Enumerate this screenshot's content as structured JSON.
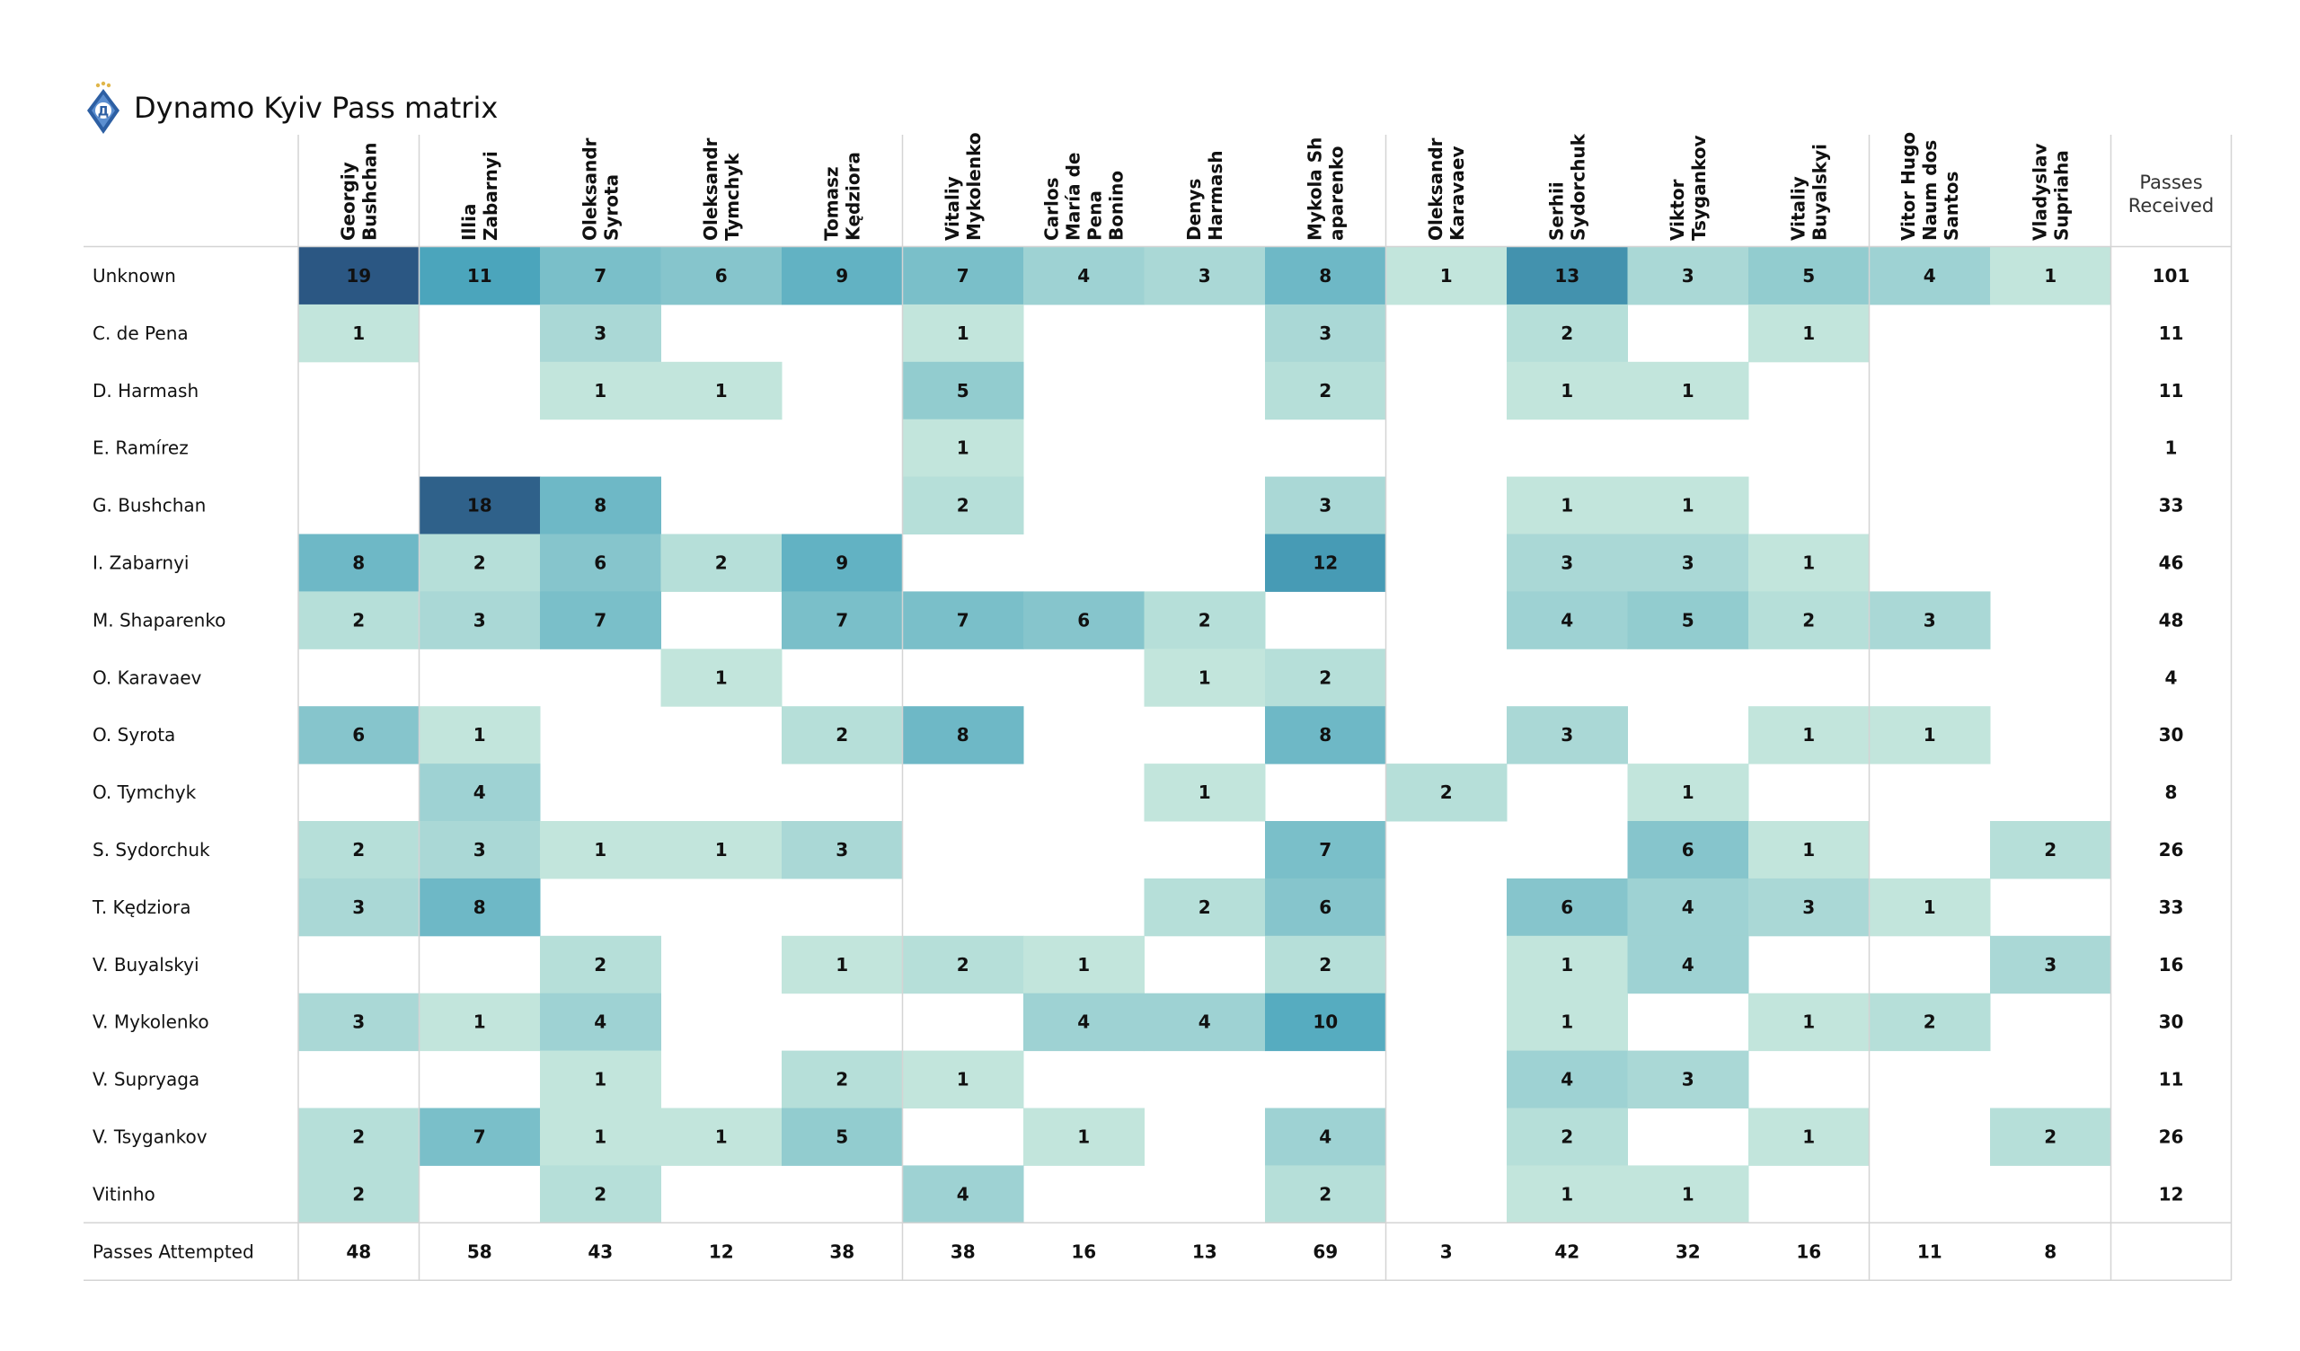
{
  "header": {
    "title": "Dynamo Kyiv Pass matrix"
  },
  "icons": {
    "logo": "dynamo-kyiv-crest-icon"
  },
  "colors": {
    "low": "#c2e5dc",
    "mid": "#4ba6bd",
    "high": "#2b5783",
    "grid": "#d4d4d4",
    "text": "#111111"
  },
  "chart_data": {
    "type": "heatmap",
    "title": "Dynamo Kyiv Pass matrix",
    "x_header_note": "columns = receiver, rows = passer",
    "columns": [
      "Georgiy\nBushchan",
      "Illia\nZabarnyi",
      "Oleksandr\nSyrota",
      "Oleksandr\nTymchyk",
      "Tomasz\nKędziora",
      "Vitaliy\nMykolenko",
      "Carlos\nMaría de\nPena\nBonino",
      "Denys\nHarmash",
      "Mykola Sh\naparenko",
      "Oleksandr\nKaravaev",
      "Serhii\nSydorchuk",
      "Viktor\nTsygankov",
      "Vitaliy\nBuyalskyi",
      "Vitor Hugo\nNaum dos\nSantos",
      "Vladyslav\nSupriaha"
    ],
    "total_column_label": "Passes\nReceived",
    "rows": [
      "Unknown",
      "C. de Pena",
      "D. Harmash",
      "E. Ramírez",
      "G. Bushchan",
      "I. Zabarnyi",
      "M. Shaparenko",
      "O. Karavaev",
      "O. Syrota",
      "O. Tymchyk",
      "S. Sydorchuk",
      "T. Kędziora",
      "V. Buyalskyi",
      "V. Mykolenko",
      "V. Supryaga",
      "V. Tsygankov",
      "Vitinho"
    ],
    "values": [
      [
        19,
        11,
        7,
        6,
        9,
        7,
        4,
        3,
        8,
        1,
        13,
        3,
        5,
        4,
        1
      ],
      [
        1,
        null,
        3,
        null,
        null,
        1,
        null,
        null,
        3,
        null,
        2,
        null,
        1,
        null,
        null
      ],
      [
        null,
        null,
        1,
        1,
        null,
        5,
        null,
        null,
        2,
        null,
        1,
        1,
        null,
        null,
        null
      ],
      [
        null,
        null,
        null,
        null,
        null,
        1,
        null,
        null,
        null,
        null,
        null,
        null,
        null,
        null,
        null
      ],
      [
        null,
        18,
        8,
        null,
        null,
        2,
        null,
        null,
        3,
        null,
        1,
        1,
        null,
        null,
        null
      ],
      [
        8,
        2,
        6,
        2,
        9,
        null,
        null,
        null,
        12,
        null,
        3,
        3,
        1,
        null,
        null
      ],
      [
        2,
        3,
        7,
        null,
        7,
        7,
        6,
        2,
        null,
        null,
        4,
        5,
        2,
        3,
        null
      ],
      [
        null,
        null,
        null,
        1,
        null,
        null,
        null,
        1,
        2,
        null,
        null,
        null,
        null,
        null,
        null
      ],
      [
        6,
        1,
        null,
        null,
        2,
        8,
        null,
        null,
        8,
        null,
        3,
        null,
        1,
        1,
        null
      ],
      [
        null,
        4,
        null,
        null,
        null,
        null,
        null,
        1,
        null,
        2,
        null,
        1,
        null,
        null,
        null
      ],
      [
        2,
        3,
        1,
        1,
        3,
        null,
        null,
        null,
        7,
        null,
        null,
        6,
        1,
        null,
        2
      ],
      [
        3,
        8,
        null,
        null,
        null,
        null,
        null,
        2,
        6,
        null,
        6,
        4,
        3,
        1,
        null
      ],
      [
        null,
        null,
        2,
        null,
        1,
        2,
        1,
        null,
        2,
        null,
        1,
        4,
        null,
        null,
        3
      ],
      [
        3,
        1,
        4,
        null,
        null,
        null,
        4,
        4,
        10,
        null,
        1,
        null,
        1,
        2,
        null
      ],
      [
        null,
        null,
        1,
        null,
        2,
        1,
        null,
        null,
        null,
        null,
        4,
        3,
        null,
        null,
        null
      ],
      [
        2,
        7,
        1,
        1,
        5,
        null,
        1,
        null,
        4,
        null,
        2,
        null,
        1,
        null,
        2
      ],
      [
        2,
        null,
        2,
        null,
        null,
        4,
        null,
        null,
        2,
        null,
        1,
        1,
        null,
        null,
        null
      ]
    ],
    "row_totals": [
      101,
      11,
      11,
      1,
      33,
      46,
      48,
      4,
      30,
      8,
      26,
      33,
      16,
      30,
      11,
      26,
      12
    ],
    "total_row_label": "Passes Attempted",
    "column_totals": [
      48,
      58,
      43,
      12,
      38,
      38,
      16,
      13,
      69,
      3,
      42,
      32,
      16,
      11,
      8
    ],
    "color_scale_max": 19
  }
}
